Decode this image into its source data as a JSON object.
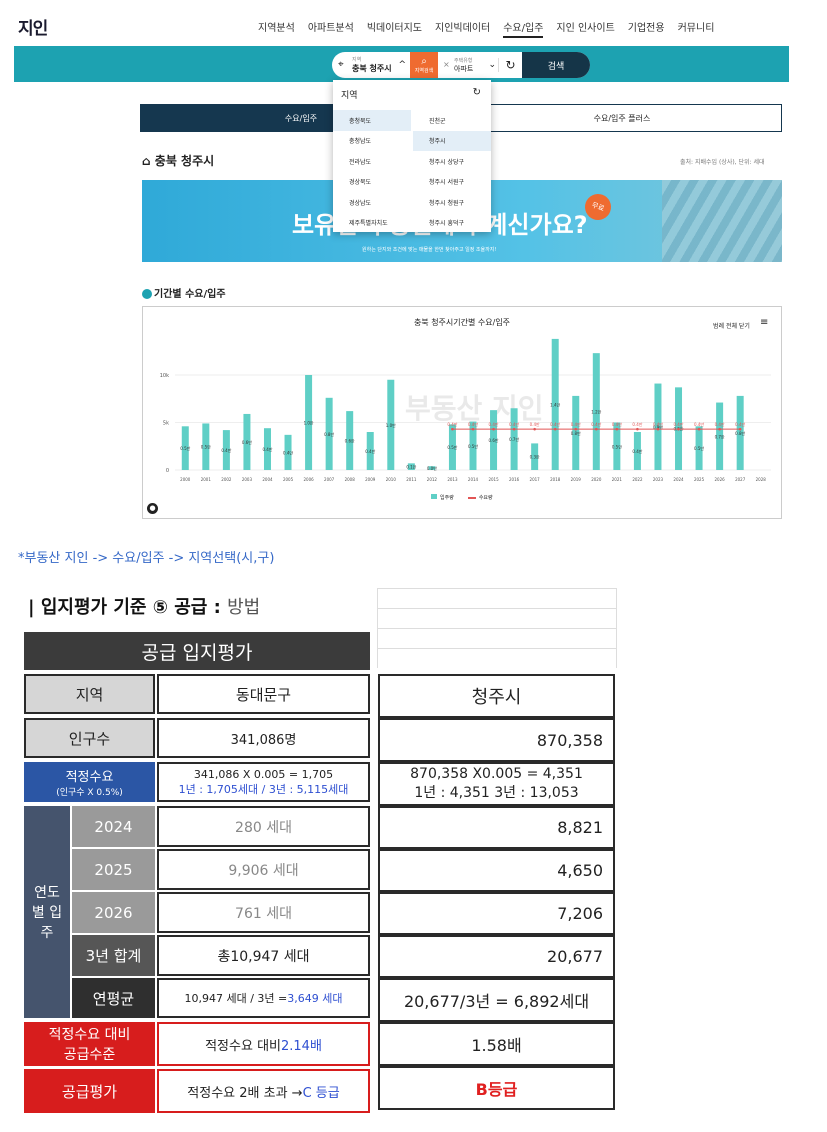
{
  "header": {
    "logo": "지인",
    "nav": [
      "지역분석",
      "아파트분석",
      "빅데이터지도",
      "지인빅데이터",
      "수요/입주",
      "지인 인사이트",
      "기업전용",
      "커뮤니티"
    ],
    "active_nav": "수요/입주"
  },
  "search": {
    "location_label": "지역",
    "location_value": "충북 청주시",
    "orange_btn": "지역검색",
    "type_label": "주택유형",
    "type_value": "아파트",
    "search_btn": "검색"
  },
  "tabs": {
    "tab1": "수요/입주",
    "tab2": "수요/입주 플러스"
  },
  "region_title": "충북 청주시",
  "source_note": "출처: 지배수입 (상사), 단위: 세대",
  "banner": {
    "headline": "보유한 부동산에서 계신가요?",
    "badge": "무료",
    "sub": "원하는 단지와 조건에 맞는 매물을 한번 찾아주고 일정 조율까지!"
  },
  "dropdown": {
    "header": "지역",
    "provinces": [
      "충청북도",
      "충청남도",
      "전라남도",
      "경상북도",
      "경상남도",
      "제주특별자치도"
    ],
    "cities": [
      "진천군",
      "청주시",
      "청주시 상당구",
      "청주시 서원구",
      "청주시 청원구",
      "청주시 흥덕구"
    ],
    "selected_province": "충청북도",
    "selected_city": "청주시"
  },
  "chart_section_title": "기간별 수요/입주",
  "chart_controls": {
    "hide_all": "범례 전체 닫기",
    "menu": "≡"
  },
  "watermark": "부동산 지인",
  "chart_data": {
    "type": "bar",
    "title": "충북 청주시기간별 수요/입주",
    "categories": [
      "2000",
      "2001",
      "2002",
      "2003",
      "2004",
      "2005",
      "2006",
      "2007",
      "2008",
      "2009",
      "2010",
      "2011",
      "2012",
      "2013",
      "2014",
      "2015",
      "2016",
      "2017",
      "2018",
      "2019",
      "2020",
      "2021",
      "2022",
      "2023",
      "2024",
      "2025",
      "2026",
      "2027",
      "2028"
    ],
    "y_ticks": [
      "0",
      "5k",
      "10k"
    ],
    "ylim": [
      0,
      14000
    ],
    "series": [
      {
        "name": "입주량",
        "type": "bar",
        "color": "#5fcfc6",
        "values": [
          4600,
          4900,
          4200,
          5900,
          4400,
          3700,
          10000,
          7600,
          6200,
          4000,
          9500,
          700,
          400,
          4800,
          5100,
          6300,
          6500,
          2800,
          13800,
          7800,
          12300,
          5000,
          4000,
          9100,
          8700,
          4600,
          7100,
          7800,
          0
        ],
        "labels": [
          "0.5만",
          "0.5만",
          "0.4만",
          "0.6만",
          "0.4만",
          "0.4만",
          "1.0만",
          "0.8만",
          "0.6만",
          "0.4만",
          "1.0만",
          "0.1만",
          "0.0만",
          "0.5만",
          "0.5만",
          "0.6만",
          "0.7만",
          "0.3만",
          "1.4만",
          "0.8만",
          "1.2만",
          "0.5만",
          "0.4만",
          "0.9만",
          "0.9만",
          "0.5만",
          "0.7만",
          "0.8만",
          ""
        ]
      },
      {
        "name": "수요량",
        "type": "line",
        "color": "#e25555",
        "values": [
          null,
          null,
          null,
          null,
          null,
          null,
          null,
          null,
          null,
          null,
          null,
          null,
          null,
          4300,
          4300,
          4300,
          4300,
          4300,
          4300,
          4300,
          4300,
          4300,
          4300,
          4300,
          4300,
          4300,
          4300,
          4300,
          null
        ],
        "labels": [
          "",
          "",
          "",
          "",
          "",
          "",
          "",
          "",
          "",
          "",
          "",
          "",
          "",
          "0.4만",
          "0.4만",
          "0.4만",
          "0.4만",
          "0.4만",
          "0.4만",
          "0.4만",
          "0.4만",
          "0.4만",
          "0.4만",
          "0.4만",
          "0.4만",
          "0.4만",
          "0.4만",
          "0.4만",
          ""
        ]
      }
    ],
    "legend": [
      "입주량",
      "수요량"
    ],
    "legend_position": "bottom"
  },
  "caption": "*부동산 지인 -> 수요/입주 -> 지역선택(시,구)",
  "section_title": {
    "main": "| 입지평가 기준 ⑤ 공급 :",
    "method": "방법"
  },
  "table": {
    "title": "공급 입지평가",
    "region_label": "지역",
    "region_value": "동대문구",
    "pop_label": "인구수",
    "pop_value": "341,086명",
    "proper_label": "적정수요",
    "proper_sub": "(인구수 X 0.5%)",
    "proper_calc": "341,086 X 0.005 = 1,705",
    "proper_detail": "1년 : 1,705세대 / 3년 : 5,115세대",
    "yearly_label": "연도별 입주",
    "years": [
      {
        "year": "2024",
        "value": "280 세대"
      },
      {
        "year": "2025",
        "value": "9,906 세대"
      },
      {
        "year": "2026",
        "value": "761 세대"
      }
    ],
    "sum_label": "3년 합계",
    "sum_value": "총10,947 세대",
    "avg_label": "연평균",
    "avg_value_prefix": "10,947 세대 / 3년 = ",
    "avg_value_hl": "3,649 세대",
    "ratio_label": "적정수요 대비 공급수준",
    "ratio_value_prefix": "적정수요 대비 ",
    "ratio_value_hl": "2.14배",
    "grade_label": "공급평가",
    "grade_value_prefix": "적정수요 2배 초과 → ",
    "grade_value_hl": "C 등급"
  },
  "right_table": {
    "region": "청주시",
    "pop": "870,358",
    "proper_calc": "870,358 X0.005 = 4,351",
    "proper_detail": "1년 : 4,351 3년 : 13,053",
    "y2024": "8,821",
    "y2025": "4,650",
    "y2026": "7,206",
    "sum": "20,677",
    "avg": "20,677/3년 = 6,892세대",
    "ratio": "1.58배",
    "grade": "B등급"
  }
}
